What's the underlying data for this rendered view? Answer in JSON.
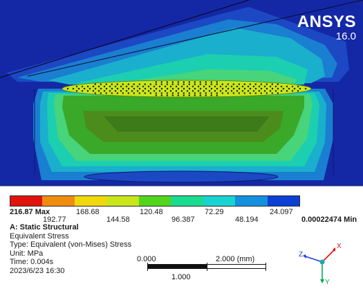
{
  "brand": {
    "name": "ANSYS",
    "version": "16.0"
  },
  "legend": {
    "colors": [
      "#e0120c",
      "#f08c10",
      "#f1d80e",
      "#c9e61a",
      "#52d61b",
      "#1adb8f",
      "#1ad2d2",
      "#1490de",
      "#0c3fd4"
    ],
    "upper_labels": [
      "216.87 Max",
      "168.68",
      "120.48",
      "72.29",
      "24.097"
    ],
    "lower_labels": [
      "192.77",
      "144.58",
      "96.387",
      "48.194"
    ],
    "min_label": "0.00022474 Min"
  },
  "info": {
    "title": "A: Static Structural",
    "result": "Equivalent Stress",
    "type": "Type: Equivalent (von-Mises) Stress",
    "unit": "Unit: MPa",
    "time": "Time:  0.004s",
    "date": "2023/6/23 16:30"
  },
  "scale": {
    "left": "0.000",
    "right": "2.000 (mm)",
    "mid": "1.000"
  },
  "triad": {
    "y": "Y",
    "z": "Z",
    "x": "X"
  }
}
